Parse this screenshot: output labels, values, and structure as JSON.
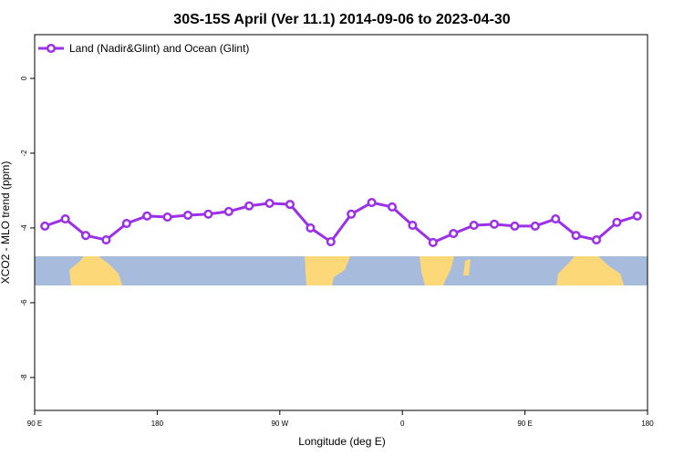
{
  "chart_data": {
    "type": "line",
    "title": "30S-15S April (Ver 11.1)   2014-09-06 to 2023-04-30",
    "xlabel": "Longitude (deg E)",
    "ylabel": "XCO2 - MLO trend (ppm)",
    "x": [
      97.5,
      112.5,
      127.5,
      142.5,
      157.5,
      172.5,
      187.5,
      202.5,
      217.5,
      232.5,
      247.5,
      262.5,
      277.5,
      292.5,
      307.5,
      322.5,
      337.5,
      352.5,
      367.5,
      382.5,
      397.5,
      412.5,
      427.5,
      442.5,
      457.5,
      472.5,
      487.5,
      502.5,
      517.5,
      532.5
    ],
    "series": [
      {
        "name": "Land (Nadir&Glint) and Ocean (Glint)",
        "color": "#9b30e8",
        "values": [
          -3.95,
          -3.76,
          -4.2,
          -4.32,
          -3.88,
          -3.68,
          -3.71,
          -3.66,
          -3.63,
          -3.56,
          -3.41,
          -3.34,
          -3.37,
          -4.0,
          -4.37,
          -3.63,
          -3.32,
          -3.44,
          -3.93,
          -4.39,
          -4.15,
          -3.93,
          -3.9,
          -3.95,
          -3.95,
          -3.76,
          -4.2,
          -4.32,
          -3.85,
          -3.68
        ]
      }
    ],
    "xlim": [
      90,
      540
    ],
    "xticks": [
      {
        "value": 90,
        "label": "90 E"
      },
      180,
      {
        "value": 270,
        "label": "90 W"
      },
      {
        "value": 360,
        "label": "0"
      },
      {
        "value": 450,
        "label": "90 E"
      },
      {
        "value": 540,
        "label": "180"
      }
    ],
    "ylim": [
      -8.88,
      1.17
    ],
    "yticks": [
      0,
      -2,
      -4,
      -6,
      -8
    ],
    "legend": "upper-left"
  }
}
